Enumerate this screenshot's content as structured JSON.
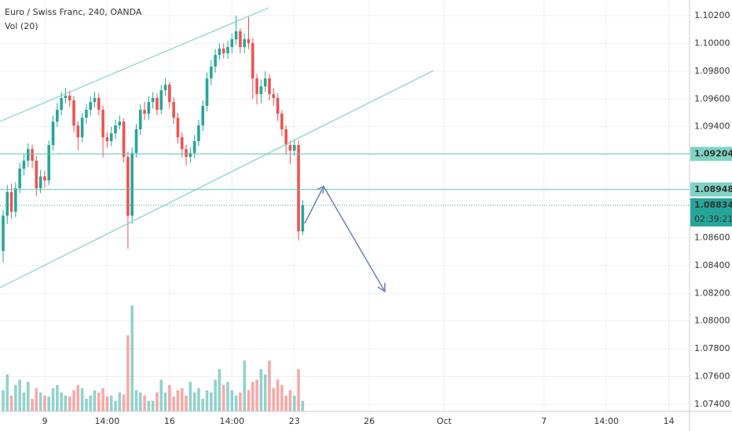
{
  "chart_data": {
    "type": "candlestick",
    "title": "Euro / Swiss Franc, 240, OANDA",
    "volume_label": "Vol (20)",
    "up_color": "#26a69a",
    "down_color": "#ef5350",
    "x": [
      -10,
      -9,
      -8,
      -7,
      -6,
      -5,
      -4,
      -3,
      -2,
      -1,
      0,
      1,
      2,
      3,
      4,
      5,
      6,
      7,
      8,
      9,
      10,
      11,
      12,
      13,
      14,
      15,
      16,
      17,
      18,
      19,
      20,
      21,
      22,
      23,
      24,
      25,
      26,
      27,
      28,
      29,
      30,
      31,
      32,
      33,
      34,
      35,
      36,
      37,
      38,
      39,
      40,
      41,
      42,
      43,
      44,
      45,
      46,
      47,
      48,
      49,
      50,
      51,
      52,
      53,
      54,
      55,
      56,
      57,
      58,
      59,
      60,
      61,
      62
    ],
    "open": [
      1.08505,
      1.08759,
      1.08929,
      1.08787,
      1.08957,
      1.09098,
      1.09155,
      1.09239,
      1.09155,
      1.08957,
      1.09042,
      1.09013,
      1.09268,
      1.09437,
      1.09522,
      1.09607,
      1.09624,
      1.0959,
      1.09409,
      1.09324,
      1.09465,
      1.09522,
      1.09578,
      1.09607,
      1.09522,
      1.09324,
      1.09296,
      1.09352,
      1.09409,
      1.09437,
      1.09183,
      1.08759,
      1.09211,
      1.09381,
      1.09522,
      1.09494,
      1.09578,
      1.09607,
      1.09522,
      1.09663,
      1.09703,
      1.09578,
      1.09465,
      1.09324,
      1.09239,
      1.09183,
      1.09211,
      1.09296,
      1.09409,
      1.0955,
      1.09748,
      1.09833,
      1.09917,
      1.09963,
      1.09929,
      1.09974,
      1.1003,
      1.10087,
      1.09974,
      1.1003,
      1.10002,
      1.09748,
      1.09635,
      1.09691,
      1.09748,
      1.09635,
      1.09607,
      1.09494,
      1.09381,
      1.09268,
      1.09228,
      1.09268,
      1.08646
    ],
    "high": [
      1.088,
      1.0898,
      1.0899,
      1.09,
      1.0914,
      1.092,
      1.0928,
      1.0927,
      1.0919,
      1.0909,
      1.0908,
      1.093,
      1.0948,
      1.0957,
      1.0965,
      1.0968,
      1.0966,
      1.0962,
      1.0944,
      1.095,
      1.0956,
      1.0962,
      1.0965,
      1.0964,
      1.0955,
      1.0936,
      1.094,
      1.0945,
      1.0948,
      1.0946,
      1.0922,
      1.0925,
      1.0942,
      1.0956,
      1.0958,
      1.0962,
      1.0965,
      1.0964,
      1.097,
      1.0975,
      1.0972,
      1.0961,
      1.095,
      1.0936,
      1.0927,
      1.0925,
      1.0934,
      1.0945,
      1.0959,
      1.0979,
      1.0988,
      1.0996,
      1.1,
      1.1,
      1.1002,
      1.1007,
      1.102,
      1.1011,
      1.1007,
      1.1019,
      1.1004,
      1.0978,
      1.0974,
      1.098,
      1.0978,
      1.0968,
      1.0964,
      1.0952,
      1.0941,
      1.093,
      1.0931,
      1.093,
      1.0887
    ],
    "low": [
      1.0842,
      1.087,
      1.0874,
      1.0875,
      1.0892,
      1.0905,
      1.0911,
      1.091,
      1.089,
      1.0892,
      1.0896,
      1.0898,
      1.0923,
      1.094,
      1.0948,
      1.0957,
      1.0954,
      1.0936,
      1.0923,
      1.0929,
      1.0942,
      1.0948,
      1.0954,
      1.0948,
      1.0918,
      1.0925,
      1.0926,
      1.0931,
      1.0938,
      1.0914,
      1.0852,
      1.087,
      1.0918,
      1.0934,
      1.0945,
      1.0945,
      1.0953,
      1.0948,
      1.0949,
      1.0962,
      1.0953,
      1.0942,
      1.0928,
      1.0918,
      1.0912,
      1.0914,
      1.0917,
      1.0926,
      1.0937,
      1.0951,
      1.097,
      1.0979,
      1.0988,
      1.0989,
      1.0989,
      1.0993,
      1.0999,
      1.0993,
      1.0993,
      1.0996,
      1.096,
      1.0956,
      1.0957,
      1.0965,
      1.0959,
      1.0955,
      1.0944,
      1.0933,
      1.092,
      1.0913,
      1.0919,
      1.0858,
      1.0862
    ],
    "close": [
      1.08759,
      1.08929,
      1.08787,
      1.08957,
      1.09098,
      1.09155,
      1.09239,
      1.09155,
      1.08957,
      1.09042,
      1.09013,
      1.09268,
      1.09437,
      1.09522,
      1.09607,
      1.09624,
      1.0959,
      1.09409,
      1.09324,
      1.09465,
      1.09522,
      1.09578,
      1.09607,
      1.09522,
      1.09324,
      1.09296,
      1.09352,
      1.09409,
      1.09437,
      1.09183,
      1.08759,
      1.09211,
      1.09381,
      1.09522,
      1.09494,
      1.09578,
      1.09607,
      1.09522,
      1.09663,
      1.09703,
      1.09578,
      1.09465,
      1.09324,
      1.09239,
      1.09183,
      1.09211,
      1.09296,
      1.09409,
      1.0955,
      1.09748,
      1.09833,
      1.09917,
      1.09963,
      1.09929,
      1.09974,
      1.1003,
      1.10087,
      1.09974,
      1.1003,
      1.10002,
      1.09748,
      1.09635,
      1.09691,
      1.09748,
      1.09635,
      1.09607,
      1.09494,
      1.09381,
      1.09268,
      1.09228,
      1.09268,
      1.08646,
      1.08834
    ],
    "volume": [
      20,
      35,
      15,
      25,
      30,
      18,
      28,
      12,
      22,
      18,
      15,
      14,
      22,
      25,
      18,
      15,
      14,
      20,
      25,
      22,
      12,
      15,
      20,
      18,
      22,
      14,
      15,
      10,
      18,
      16,
      72,
      100,
      20,
      18,
      15,
      10,
      10,
      18,
      30,
      18,
      25,
      14,
      20,
      22,
      15,
      28,
      18,
      22,
      12,
      20,
      18,
      30,
      40,
      25,
      28,
      20,
      15,
      18,
      48,
      20,
      28,
      30,
      40,
      35,
      48,
      22,
      30,
      25,
      15,
      20,
      15,
      40,
      10
    ],
    "vlim": [
      0,
      100
    ],
    "xlim": [
      -10.75,
      155
    ],
    "ylim": [
      1.07349,
      1.10313
    ],
    "xticks": [
      {
        "value": 0,
        "label": "9"
      },
      {
        "value": 15,
        "label": "14:00"
      },
      {
        "value": 30,
        "label": "16"
      },
      {
        "value": 45,
        "label": "14:00"
      },
      {
        "value": 60,
        "label": "23"
      },
      {
        "value": 78,
        "label": "26"
      },
      {
        "value": 96,
        "label": "Oct"
      },
      {
        "value": 120,
        "label": "7"
      },
      {
        "value": 135,
        "label": "14:00"
      },
      {
        "value": 150,
        "label": "14"
      }
    ],
    "yticks": [
      {
        "value": 1.102,
        "label": "1.10200"
      },
      {
        "value": 1.1,
        "label": "1.10000"
      },
      {
        "value": 1.098,
        "label": "1.09800"
      },
      {
        "value": 1.096,
        "label": "1.09600"
      },
      {
        "value": 1.094,
        "label": "1.09400"
      },
      {
        "value": 1.086,
        "label": "1.08600"
      },
      {
        "value": 1.084,
        "label": "1.08400"
      },
      {
        "value": 1.082,
        "label": "1.08200"
      },
      {
        "value": 1.08,
        "label": "1.08000"
      },
      {
        "value": 1.078,
        "label": "1.07800"
      },
      {
        "value": 1.076,
        "label": "1.07600"
      },
      {
        "value": 1.074,
        "label": "1.07400"
      }
    ],
    "levels": [
      {
        "value": 1.09204,
        "label": "1.09204",
        "style": "solid"
      },
      {
        "value": 1.08948,
        "label": "1.08948",
        "style": "solid"
      },
      {
        "value": 1.08834,
        "label": "1.08834",
        "style": "dotted"
      }
    ],
    "countdown": "02:39:21",
    "grid": true
  }
}
